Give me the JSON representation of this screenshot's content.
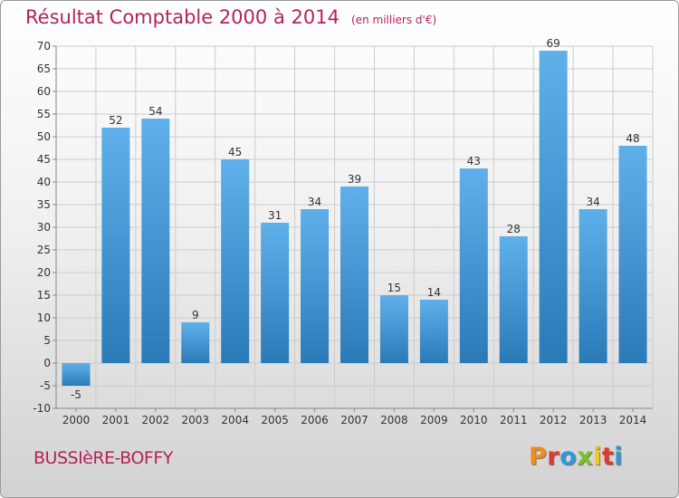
{
  "header": {
    "title": "Résultat Comptable 2000 à 2014",
    "unit": "(en milliers d'€)"
  },
  "footer": {
    "town": "BUSSIèRE-BOFFY",
    "logo": "Proxiti",
    "logo_colors": [
      "#f28c1c",
      "#e03a2e",
      "#2c9ad6",
      "#7bbf2a",
      "#f2c81c",
      "#e03a2e",
      "#2c9ad6"
    ]
  },
  "colors": {
    "bar_top": "#5fb0ea",
    "bar_bottom": "#2a7ab8",
    "grid": "#cccccc",
    "axis_text": "#333333"
  },
  "chart_data": {
    "type": "bar",
    "title": "Résultat Comptable 2000 à 2014",
    "subtitle": "(en milliers d'€)",
    "categories": [
      "2000",
      "2001",
      "2002",
      "2003",
      "2004",
      "2005",
      "2006",
      "2007",
      "2008",
      "2009",
      "2010",
      "2011",
      "2012",
      "2013",
      "2014"
    ],
    "values": [
      -5,
      52,
      54,
      9,
      45,
      31,
      34,
      39,
      15,
      14,
      43,
      28,
      69,
      34,
      48
    ],
    "ylim": [
      -10,
      70
    ],
    "yticks": [
      -10,
      -5,
      0,
      5,
      10,
      15,
      20,
      25,
      30,
      35,
      40,
      45,
      50,
      55,
      60,
      65,
      70
    ],
    "xlabel": "",
    "ylabel": "",
    "grid": true
  }
}
